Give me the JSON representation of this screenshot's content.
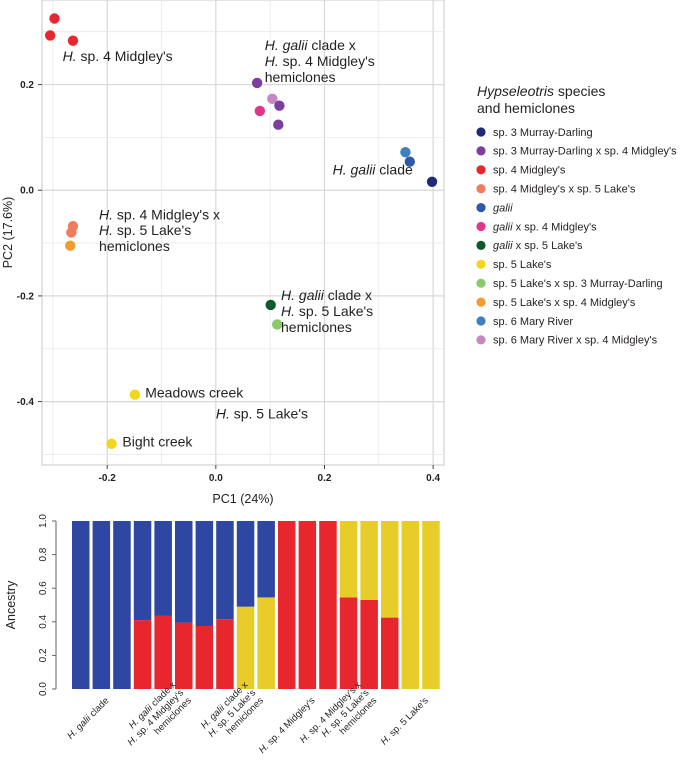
{
  "colors": {
    "sp3": "#1e2a78",
    "sp3xsp4": "#7b3f9e",
    "sp4": "#e8262e",
    "sp4xsp5": "#f07b5e",
    "galii": "#2e59a8",
    "galiixsp4": "#e0368a",
    "galiixsp5": "#0d5b2b",
    "sp5": "#f2d61c",
    "sp5xsp3": "#8cc96b",
    "sp5xsp4": "#f39c2f",
    "sp6": "#3c80c0",
    "sp6xsp4": "#c686c2",
    "bar_blue": "#2e47a2",
    "bar_red": "#e8262e",
    "bar_yellow": "#e8cc2a"
  },
  "chart_data": [
    {
      "type": "scatter",
      "title": "",
      "xlabel": "PC1 (24%)",
      "ylabel": "PC2 (17.6%)",
      "xlim": [
        -0.32,
        0.42
      ],
      "ylim": [
        -0.52,
        0.36
      ],
      "xticks": [
        "-0.2",
        "0.0",
        "0.2",
        "0.4"
      ],
      "xtick_values": [
        -0.2,
        0.0,
        0.2,
        0.4
      ],
      "yticks": [
        "0.2",
        "0.0",
        "-0.2",
        "-0.4"
      ],
      "ytick_values": [
        0.2,
        0.0,
        -0.2,
        -0.4
      ],
      "grid": true,
      "legend": {
        "title_italic": "Hypseleotris",
        "title_rest": " species",
        "title_line2": "and hemiclones",
        "position": "right",
        "entries": [
          {
            "italic": "",
            "text": "sp. 3 Murray-Darling",
            "color": "#1e2a78"
          },
          {
            "italic": "",
            "text": "sp. 3 Murray-Darling x sp. 4 Midgley's",
            "color": "#7b3f9e"
          },
          {
            "italic": "",
            "text": "sp. 4 Midgley's",
            "color": "#e8262e"
          },
          {
            "italic": "",
            "text": "sp. 4 Midgley's x sp. 5 Lake's",
            "color": "#f07b5e"
          },
          {
            "italic": "galii",
            "text": "",
            "color": "#2e59a8"
          },
          {
            "italic": "galii",
            "text": " x sp. 4 Midgley's",
            "color": "#e0368a"
          },
          {
            "italic": "galii",
            "text": " x sp. 5 Lake's",
            "color": "#0d5b2b"
          },
          {
            "italic": "",
            "text": "sp. 5 Lake's",
            "color": "#f2d61c"
          },
          {
            "italic": "",
            "text": "sp. 5 Lake's x sp. 3 Murray-Darling",
            "color": "#8cc96b"
          },
          {
            "italic": "",
            "text": "sp. 5 Lake's x sp. 4 Midgley's",
            "color": "#f39c2f"
          },
          {
            "italic": "",
            "text": "sp. 6 Mary River",
            "color": "#3c80c0"
          },
          {
            "italic": "",
            "text": "sp. 6 Mary River x sp. 4 Midgley's",
            "color": "#c686c2"
          }
        ]
      },
      "points": [
        {
          "x": -0.297,
          "y": 0.325,
          "group": "sp. 4 Midgley's",
          "color": "#e8262e"
        },
        {
          "x": -0.305,
          "y": 0.293,
          "group": "sp. 4 Midgley's",
          "color": "#e8262e"
        },
        {
          "x": -0.263,
          "y": 0.283,
          "group": "sp. 4 Midgley's",
          "color": "#e8262e"
        },
        {
          "x": 0.076,
          "y": 0.203,
          "group": "sp. 3 Murray-Darling x sp. 4 Midgley's",
          "color": "#7b3f9e"
        },
        {
          "x": 0.104,
          "y": 0.173,
          "group": "sp. 6 Mary River x sp. 4 Midgley's",
          "color": "#c686c2"
        },
        {
          "x": 0.117,
          "y": 0.16,
          "group": "sp. 3 Murray-Darling x sp. 4 Midgley's",
          "color": "#7b3f9e"
        },
        {
          "x": 0.081,
          "y": 0.15,
          "group": "galii x sp. 4 Midgley's",
          "color": "#e0368a"
        },
        {
          "x": 0.115,
          "y": 0.124,
          "group": "sp. 3 Murray-Darling x sp. 4 Midgley's",
          "color": "#7b3f9e"
        },
        {
          "x": 0.349,
          "y": 0.072,
          "group": "sp. 6 Mary River",
          "color": "#3c80c0"
        },
        {
          "x": 0.357,
          "y": 0.054,
          "group": "galii",
          "color": "#2e59a8"
        },
        {
          "x": 0.398,
          "y": 0.016,
          "group": "sp. 3 Murray-Darling",
          "color": "#1e2a78"
        },
        {
          "x": -0.263,
          "y": -0.068,
          "group": "sp. 4 Midgley's x sp. 5 Lake's",
          "color": "#f07b5e"
        },
        {
          "x": -0.266,
          "y": -0.08,
          "group": "sp. 4 Midgley's x sp. 5 Lake's",
          "color": "#f07b5e"
        },
        {
          "x": -0.268,
          "y": -0.105,
          "group": "sp. 5 Lake's x sp. 4 Midgley's",
          "color": "#f39c2f"
        },
        {
          "x": 0.101,
          "y": -0.217,
          "group": "galii x sp. 5 Lake's",
          "color": "#0d5b2b"
        },
        {
          "x": 0.113,
          "y": -0.254,
          "group": "sp. 5 Lake's x sp. 3 Murray-Darling",
          "color": "#8cc96b"
        },
        {
          "x": -0.149,
          "y": -0.387,
          "group": "sp. 5 Lake's",
          "color": "#f2d61c"
        },
        {
          "x": -0.192,
          "y": -0.48,
          "group": "sp. 5 Lake's",
          "color": "#f2d61c"
        }
      ],
      "annotations": [
        {
          "italic": "H.",
          "text": " sp. 4 Midgley's",
          "x": -0.282,
          "y": 0.245
        },
        {
          "italic": "H. galii",
          "text": " clade x",
          "x": 0.09,
          "y": 0.265
        },
        {
          "italic": "H.",
          "text": " sp. 4 Midgley's",
          "x": 0.09,
          "y": 0.235
        },
        {
          "italic": "",
          "text": "hemiclones",
          "x": 0.09,
          "y": 0.205
        },
        {
          "italic": "H. galii",
          "text": " clade",
          "x": 0.215,
          "y": 0.03
        },
        {
          "italic": "H.",
          "text": " sp. 4 Midgley's x",
          "x": -0.215,
          "y": -0.055
        },
        {
          "italic": "H.",
          "text": " sp. 5 Lake's",
          "x": -0.215,
          "y": -0.085
        },
        {
          "italic": "",
          "text": "hemiclones",
          "x": -0.215,
          "y": -0.115
        },
        {
          "italic": "H. galii",
          "text": " clade x",
          "x": 0.12,
          "y": -0.208
        },
        {
          "italic": "H.",
          "text": " sp. 5 Lake's",
          "x": 0.12,
          "y": -0.238
        },
        {
          "italic": "",
          "text": "hemiclones",
          "x": 0.12,
          "y": -0.268
        },
        {
          "italic": "",
          "text": "Meadows creek",
          "x": -0.13,
          "y": -0.392
        },
        {
          "italic": "H.",
          "text": " sp. 5 Lake's",
          "x": 0.0,
          "y": -0.432
        },
        {
          "italic": "",
          "text": "Bight creek",
          "x": -0.172,
          "y": -0.485
        }
      ]
    },
    {
      "type": "bar",
      "stacked": true,
      "ylabel": "Ancestry",
      "ylim": [
        0.0,
        1.0
      ],
      "yticks": [
        "0.0",
        "0.2",
        "0.4",
        "0.6",
        "0.8",
        "1.0"
      ],
      "ytick_values": [
        0.0,
        0.2,
        0.4,
        0.6,
        0.8,
        1.0
      ],
      "series_colors": [
        "#e8262e",
        "#e8cc2a",
        "#2e47a2"
      ],
      "bars": [
        {
          "red": 0.0,
          "yellow": 0.0,
          "blue": 1.0
        },
        {
          "red": 0.0,
          "yellow": 0.0,
          "blue": 1.0
        },
        {
          "red": 0.0,
          "yellow": 0.0,
          "blue": 1.0
        },
        {
          "red": 0.41,
          "yellow": 0.0,
          "blue": 0.59
        },
        {
          "red": 0.435,
          "yellow": 0.0,
          "blue": 0.565
        },
        {
          "red": 0.395,
          "yellow": 0.0,
          "blue": 0.605
        },
        {
          "red": 0.375,
          "yellow": 0.0,
          "blue": 0.625
        },
        {
          "red": 0.415,
          "yellow": 0.0,
          "blue": 0.585
        },
        {
          "red": 0.0,
          "yellow": 0.49,
          "blue": 0.51
        },
        {
          "red": 0.0,
          "yellow": 0.545,
          "blue": 0.455
        },
        {
          "red": 1.0,
          "yellow": 0.0,
          "blue": 0.0
        },
        {
          "red": 1.0,
          "yellow": 0.0,
          "blue": 0.0
        },
        {
          "red": 1.0,
          "yellow": 0.0,
          "blue": 0.0
        },
        {
          "red": 0.545,
          "yellow": 0.455,
          "blue": 0.0
        },
        {
          "red": 0.53,
          "yellow": 0.47,
          "blue": 0.0
        },
        {
          "red": 0.425,
          "yellow": 0.575,
          "blue": 0.0
        },
        {
          "red": 0.0,
          "yellow": 1.0,
          "blue": 0.0
        },
        {
          "red": 0.0,
          "yellow": 1.0,
          "blue": 0.0
        }
      ],
      "category_labels": [
        {
          "lines": [
            {
              "italic": "H. galii",
              "text": " clade"
            }
          ],
          "bar_from": 0,
          "bar_to": 2
        },
        {
          "lines": [
            {
              "italic": "H. galii",
              "text": " clade x"
            },
            {
              "italic": "H.",
              "text": " sp. 4 Midgley's"
            },
            {
              "italic": "",
              "text": "hemiclones"
            }
          ],
          "bar_from": 3,
          "bar_to": 7
        },
        {
          "lines": [
            {
              "italic": "H. galii",
              "text": " clade x"
            },
            {
              "italic": "H.",
              "text": " sp. 5 Lake's"
            },
            {
              "italic": "",
              "text": "hemiclones"
            }
          ],
          "bar_from": 8,
          "bar_to": 9
        },
        {
          "lines": [
            {
              "italic": "H.",
              "text": " sp. 4 Midgley's"
            }
          ],
          "bar_from": 10,
          "bar_to": 12
        },
        {
          "lines": [
            {
              "italic": "H.",
              "text": " sp. 4 Midgley's x"
            },
            {
              "italic": "H.",
              "text": " sp. 5 Lake's"
            },
            {
              "italic": "",
              "text": "hemiclones"
            }
          ],
          "bar_from": 13,
          "bar_to": 15
        },
        {
          "lines": [
            {
              "italic": "H.",
              "text": " sp. 5 Lake's"
            }
          ],
          "bar_from": 16,
          "bar_to": 17
        }
      ]
    }
  ]
}
